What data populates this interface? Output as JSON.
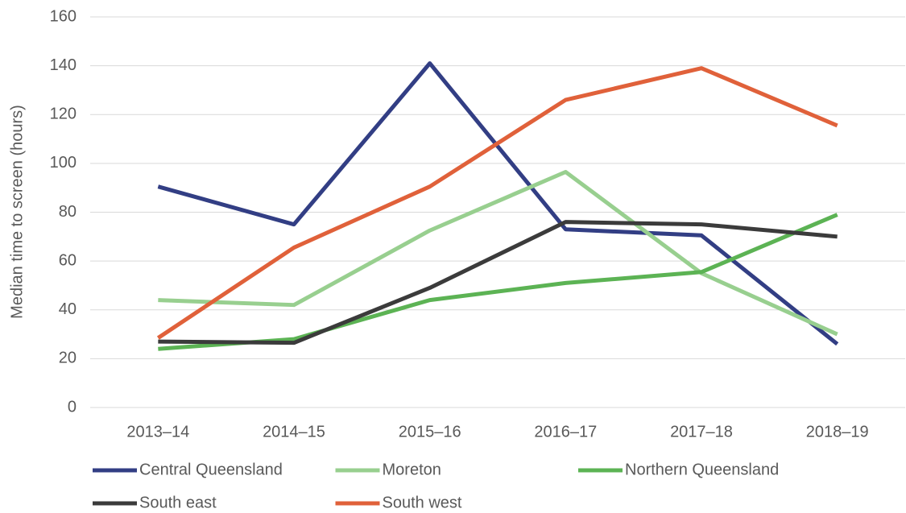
{
  "chart_data": {
    "type": "line",
    "y_label": "Median time to screen (hours)",
    "categories": [
      "2013–14",
      "2014–15",
      "2015–16",
      "2016–17",
      "2017–18",
      "2018–19"
    ],
    "series": [
      {
        "name": "Central Queensland",
        "color": "#323e84",
        "values": [
          90.5,
          75,
          141,
          73,
          70.5,
          26
        ]
      },
      {
        "name": "Moreton",
        "color": "#98cf8f",
        "values": [
          44,
          42,
          72.5,
          96.5,
          55,
          30
        ]
      },
      {
        "name": "Northern Queensland",
        "color": "#5cb354",
        "values": [
          24,
          28,
          44,
          51,
          55.5,
          79
        ]
      },
      {
        "name": "South east",
        "color": "#3b3b3b",
        "values": [
          27,
          26.5,
          49,
          76,
          75,
          70
        ]
      },
      {
        "name": "South west",
        "color": "#e0613a",
        "values": [
          28.5,
          65.5,
          90.5,
          126,
          139,
          115.5
        ]
      }
    ],
    "ylim": [
      0,
      160
    ],
    "yticks": [
      0,
      20,
      40,
      60,
      80,
      100,
      120,
      140,
      160
    ],
    "grid": true
  }
}
